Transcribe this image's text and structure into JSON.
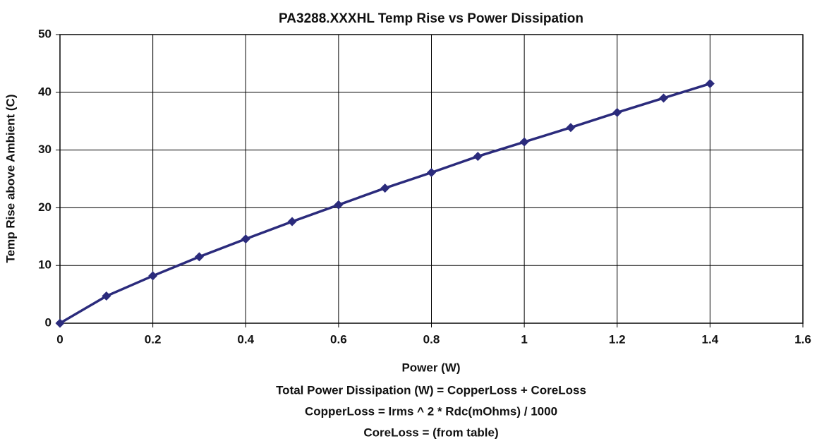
{
  "chart_data": {
    "type": "line",
    "title": "PA3288.XXXHL Temp Rise vs Power Dissipation",
    "x_label": "Power (W)",
    "y_label": "Temp Rise above Ambient (C)",
    "annotations": [
      "Total Power Dissipation (W) = CopperLoss + CoreLoss",
      "CopperLoss = Irms ^ 2 * Rdc(mOhms) / 1000",
      "CoreLoss = (from table)"
    ],
    "x": [
      0,
      0.1,
      0.2,
      0.3,
      0.4,
      0.5,
      0.6,
      0.7,
      0.8,
      0.9,
      1,
      1.1,
      1.2,
      1.3,
      1.4
    ],
    "series": [
      {
        "name": "Temp Rise",
        "color": "#2b2b7c",
        "values": [
          0,
          4.7,
          8.2,
          11.5,
          14.6,
          17.6,
          20.5,
          23.4,
          26.1,
          28.9,
          31.4,
          33.9,
          36.5,
          39.0,
          41.5
        ]
      }
    ],
    "xlim": [
      0,
      1.6
    ],
    "xticks": [
      0,
      0.2,
      0.4,
      0.6,
      0.8,
      1,
      1.2,
      1.4,
      1.6
    ],
    "ylim": [
      0,
      50
    ],
    "yticks": [
      0,
      10,
      20,
      30,
      40,
      50
    ],
    "grid": true
  }
}
